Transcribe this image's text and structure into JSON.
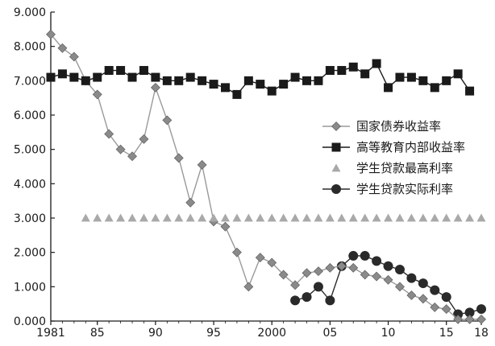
{
  "chart_data": {
    "type": "line",
    "title": "",
    "xlabel": "",
    "ylabel": "",
    "xlim": [
      1981,
      2018
    ],
    "ylim": [
      0,
      9
    ],
    "grid": false,
    "legend_position": "right",
    "x_ticks": [
      {
        "value": 1981,
        "label": "1981"
      },
      {
        "value": 1985,
        "label": "85"
      },
      {
        "value": 1990,
        "label": "90"
      },
      {
        "value": 1995,
        "label": "95"
      },
      {
        "value": 2000,
        "label": "2000"
      },
      {
        "value": 2005,
        "label": "05"
      },
      {
        "value": 2010,
        "label": "10"
      },
      {
        "value": 2015,
        "label": "15"
      },
      {
        "value": 2018,
        "label": "18"
      }
    ],
    "y_ticks": [
      {
        "value": 0,
        "label": "0.000"
      },
      {
        "value": 1,
        "label": "1.000"
      },
      {
        "value": 2,
        "label": "2.000"
      },
      {
        "value": 3,
        "label": "3.000"
      },
      {
        "value": 4,
        "label": "4.000"
      },
      {
        "value": 5,
        "label": "5.000"
      },
      {
        "value": 6,
        "label": "6.000"
      },
      {
        "value": 7,
        "label": "7.000"
      },
      {
        "value": 8,
        "label": "8.000"
      },
      {
        "value": 9,
        "label": "9.000"
      }
    ],
    "series": [
      {
        "name": "国家债券收益率",
        "marker": "diamond",
        "color": "#8a8a8a",
        "line_color": "#9a9a9a",
        "x": [
          1981,
          1982,
          1983,
          1984,
          1985,
          1986,
          1987,
          1988,
          1989,
          1990,
          1991,
          1992,
          1993,
          1994,
          1995,
          1996,
          1997,
          1998,
          1999,
          2000,
          2001,
          2002,
          2003,
          2004,
          2005,
          2006,
          2007,
          2008,
          2009,
          2010,
          2011,
          2012,
          2013,
          2014,
          2015,
          2016,
          2017,
          2018
        ],
        "y": [
          8.35,
          7.95,
          7.7,
          7.0,
          6.6,
          5.45,
          5.0,
          4.8,
          5.3,
          6.8,
          5.85,
          4.75,
          3.45,
          4.55,
          2.9,
          2.75,
          2.0,
          1.0,
          1.85,
          1.7,
          1.35,
          1.05,
          1.4,
          1.45,
          1.55,
          1.6,
          1.55,
          1.35,
          1.3,
          1.2,
          1.0,
          0.75,
          0.65,
          0.4,
          0.35,
          0.05,
          0.05,
          0.05
        ]
      },
      {
        "name": "高等教育内部收益率",
        "marker": "square",
        "color": "#1a1a1a",
        "line_color": "#1a1a1a",
        "x": [
          1981,
          1982,
          1983,
          1984,
          1985,
          1986,
          1987,
          1988,
          1989,
          1990,
          1991,
          1992,
          1993,
          1994,
          1995,
          1996,
          1997,
          1998,
          1999,
          2000,
          2001,
          2002,
          2003,
          2004,
          2005,
          2006,
          2007,
          2008,
          2009,
          2010,
          2011,
          2012,
          2013,
          2014,
          2015,
          2016,
          2017
        ],
        "y": [
          7.1,
          7.2,
          7.1,
          7.0,
          7.1,
          7.3,
          7.3,
          7.1,
          7.3,
          7.1,
          7.0,
          7.0,
          7.1,
          7.0,
          6.9,
          6.8,
          6.6,
          7.0,
          6.9,
          6.7,
          6.9,
          7.1,
          7.0,
          7.0,
          7.3,
          7.3,
          7.4,
          7.2,
          7.5,
          6.8,
          7.1,
          7.1,
          7.0,
          6.8,
          7.0,
          7.2,
          6.7
        ]
      },
      {
        "name": "学生贷款最高利率",
        "marker": "triangle",
        "color": "#a9a9a9",
        "line_color": null,
        "x": [
          1984,
          1985,
          1986,
          1987,
          1988,
          1989,
          1990,
          1991,
          1992,
          1993,
          1994,
          1995,
          1996,
          1997,
          1998,
          1999,
          2000,
          2001,
          2002,
          2003,
          2004,
          2005,
          2006,
          2007,
          2008,
          2009,
          2010,
          2011,
          2012,
          2013,
          2014,
          2015,
          2016,
          2017,
          2018
        ],
        "y": [
          3,
          3,
          3,
          3,
          3,
          3,
          3,
          3,
          3,
          3,
          3,
          3,
          3,
          3,
          3,
          3,
          3,
          3,
          3,
          3,
          3,
          3,
          3,
          3,
          3,
          3,
          3,
          3,
          3,
          3,
          3,
          3,
          3,
          3,
          3
        ]
      },
      {
        "name": "学生贷款实际利率",
        "marker": "circle",
        "color": "#2a2a2a",
        "line_color": "#2a2a2a",
        "x": [
          2002,
          2003,
          2004,
          2005,
          2006,
          2007,
          2008,
          2009,
          2010,
          2011,
          2012,
          2013,
          2014,
          2015,
          2016,
          2017,
          2018
        ],
        "y": [
          0.6,
          0.7,
          1.0,
          0.6,
          1.6,
          1.9,
          1.9,
          1.75,
          1.6,
          1.5,
          1.25,
          1.1,
          0.9,
          0.7,
          0.2,
          0.25,
          0.35
        ]
      }
    ]
  }
}
